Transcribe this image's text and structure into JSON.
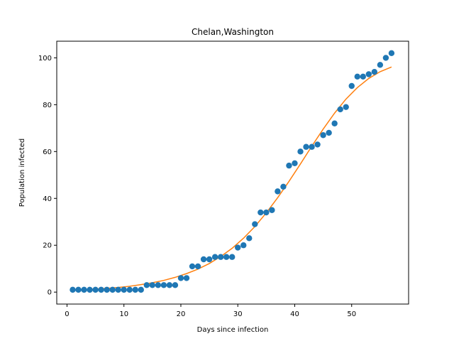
{
  "chart_data": {
    "type": "scatter",
    "title": "Chelan,Washington",
    "xlabel": "Days since infection",
    "ylabel": "Population infected",
    "xlim": [
      -1.8,
      60
    ],
    "ylim": [
      -5.1,
      107.1
    ],
    "xticks": [
      0,
      10,
      20,
      30,
      40,
      50
    ],
    "yticks": [
      0,
      20,
      40,
      60,
      80,
      100
    ],
    "grid": false,
    "series": [
      {
        "kind": "scatter",
        "color": "#1f77b4",
        "x": [
          1,
          2,
          3,
          4,
          5,
          6,
          7,
          8,
          9,
          10,
          11,
          12,
          13,
          14,
          15,
          16,
          17,
          18,
          19,
          20,
          21,
          22,
          23,
          24,
          25,
          26,
          27,
          28,
          29,
          30,
          31,
          32,
          33,
          34,
          35,
          36,
          37,
          38,
          39,
          40,
          41,
          42,
          43,
          44,
          45,
          46,
          47,
          48,
          49,
          50,
          51,
          52,
          53,
          54,
          55,
          56,
          57
        ],
        "y": [
          1,
          1,
          1,
          1,
          1,
          1,
          1,
          1,
          1,
          1,
          1,
          1,
          1,
          3,
          3,
          3,
          3,
          3,
          3,
          6,
          6,
          11,
          11,
          14,
          14,
          15,
          15,
          15,
          15,
          19,
          20,
          23,
          29,
          34,
          34,
          35,
          43,
          45,
          54,
          55,
          60,
          62,
          62,
          63,
          67,
          68,
          72,
          78,
          79,
          88,
          92,
          92,
          93,
          94,
          97,
          100,
          102
        ]
      },
      {
        "kind": "line",
        "color": "#ff7f0e",
        "x": [
          1,
          3,
          5,
          7,
          9,
          11,
          13,
          15,
          17,
          19,
          21,
          23,
          25,
          27,
          29,
          31,
          33,
          35,
          37,
          39,
          41,
          43,
          45,
          47,
          49,
          51,
          53,
          55,
          57
        ],
        "y": [
          0.8,
          1.0,
          1.3,
          1.6,
          2.0,
          2.5,
          3.2,
          4.0,
          5.0,
          6.3,
          7.9,
          9.8,
          12.2,
          15.2,
          18.7,
          23.0,
          28.0,
          33.8,
          40.3,
          47.3,
          54.7,
          62.3,
          69.6,
          76.4,
          82.4,
          87.3,
          91.2,
          94.1,
          96.1
        ]
      }
    ]
  }
}
